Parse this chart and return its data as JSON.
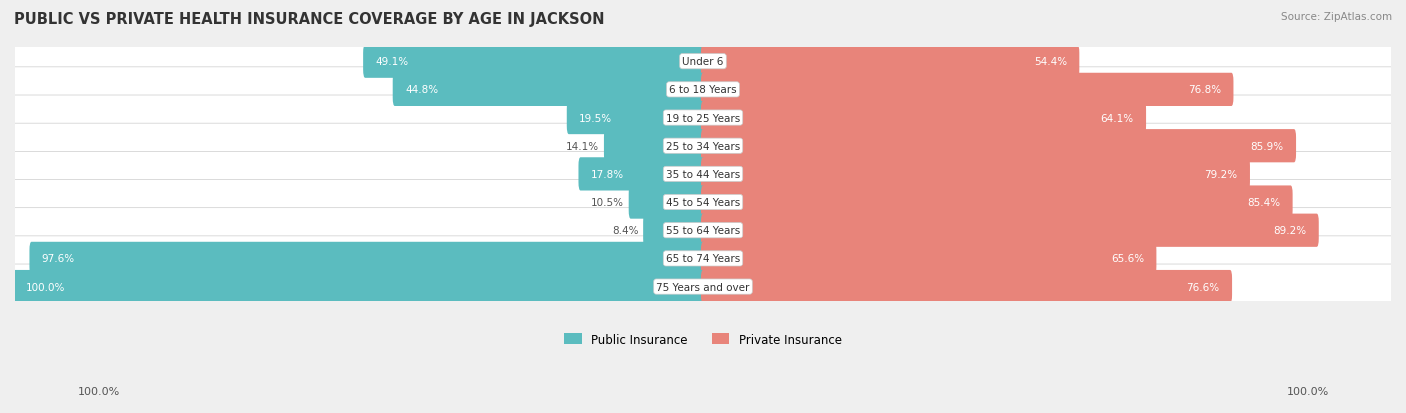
{
  "title": "PUBLIC VS PRIVATE HEALTH INSURANCE COVERAGE BY AGE IN JACKSON",
  "source": "Source: ZipAtlas.com",
  "categories": [
    "Under 6",
    "6 to 18 Years",
    "19 to 25 Years",
    "25 to 34 Years",
    "35 to 44 Years",
    "45 to 54 Years",
    "55 to 64 Years",
    "65 to 74 Years",
    "75 Years and over"
  ],
  "public_values": [
    49.1,
    44.8,
    19.5,
    14.1,
    17.8,
    10.5,
    8.4,
    97.6,
    100.0
  ],
  "private_values": [
    54.4,
    76.8,
    64.1,
    85.9,
    79.2,
    85.4,
    89.2,
    65.6,
    76.6
  ],
  "public_color": "#5bbcbf",
  "private_color": "#e8847a",
  "bg_color": "#efefef",
  "label_color": "#333333",
  "title_color": "#333333",
  "max_value": 100.0,
  "bar_height": 0.58,
  "legend_public": "Public Insurance",
  "legend_private": "Private Insurance"
}
